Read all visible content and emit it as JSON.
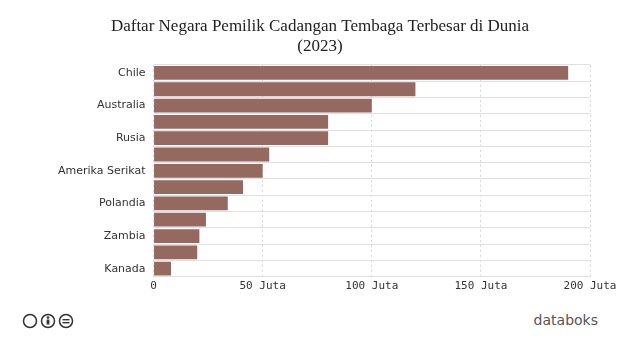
{
  "chart_data": {
    "type": "bar",
    "orientation": "horizontal",
    "title": [
      "Daftar Negara Pemilik Cadangan Tembaga Terbesar di Dunia",
      "(2023)"
    ],
    "categories": [
      "Chile",
      null,
      "Australia",
      null,
      "Rusia",
      null,
      "Amerika Serikat",
      null,
      "Polandia",
      null,
      "Zambia",
      null,
      "Kanada"
    ],
    "values": [
      190,
      120,
      100,
      80,
      80,
      53,
      50,
      41,
      34,
      24,
      21,
      20,
      8
    ],
    "color": "#956960",
    "xlim": [
      0,
      200
    ],
    "xticks": [
      0,
      {
        "value": 50,
        "label": "50 Juta"
      },
      {
        "value": 100,
        "label": "100 Juta"
      },
      {
        "value": 150,
        "label": "150 Juta"
      },
      {
        "value": 200,
        "label": "200 Juta"
      }
    ],
    "grid": true,
    "brand": "databoks"
  }
}
